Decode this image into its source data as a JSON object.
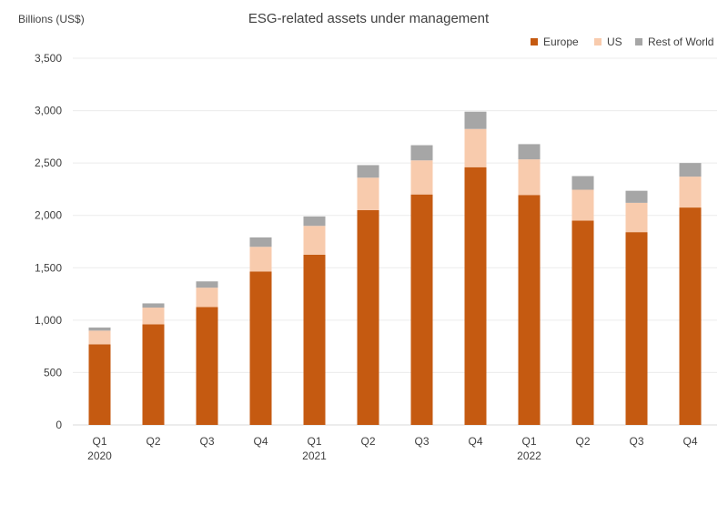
{
  "chart_data": {
    "type": "bar",
    "stacked": true,
    "title": "ESG-related assets under management",
    "ylabel": "Billions (US$)",
    "xlabel": "",
    "ylim": [
      0,
      3500
    ],
    "yticks": [
      0,
      500,
      1000,
      1500,
      2000,
      2500,
      3000,
      3500
    ],
    "ytick_labels": [
      "0",
      "500",
      "1,000",
      "1,500",
      "2,000",
      "2,500",
      "3,000",
      "3,500"
    ],
    "grid": true,
    "legend_position": "top-right",
    "categories": [
      "Q1",
      "Q2",
      "Q3",
      "Q4",
      "Q1",
      "Q2",
      "Q3",
      "Q4",
      "Q1",
      "Q2",
      "Q3",
      "Q4"
    ],
    "year_labels": [
      "2020",
      "",
      "",
      "",
      "2021",
      "",
      "",
      "",
      "2022",
      "",
      "",
      ""
    ],
    "series": [
      {
        "name": "Europe",
        "color": "#c55a11",
        "values": [
          770,
          960,
          1125,
          1465,
          1625,
          2050,
          2200,
          2460,
          2195,
          1950,
          1840,
          2075
        ]
      },
      {
        "name": "US",
        "color": "#f8cbad",
        "values": [
          130,
          160,
          185,
          235,
          275,
          310,
          325,
          365,
          340,
          295,
          280,
          295
        ]
      },
      {
        "name": "Rest of World",
        "color": "#a6a6a6",
        "values": [
          30,
          40,
          60,
          90,
          90,
          120,
          145,
          165,
          145,
          130,
          115,
          130
        ]
      }
    ]
  }
}
